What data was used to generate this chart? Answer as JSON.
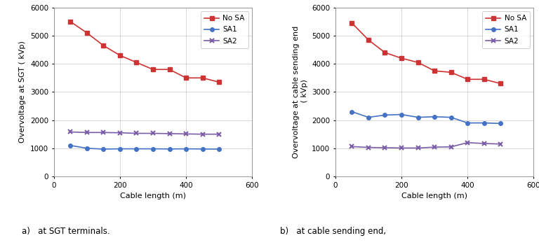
{
  "x": [
    50,
    100,
    150,
    200,
    250,
    300,
    350,
    400,
    450,
    500
  ],
  "left": {
    "no_sa": [
      5500,
      5100,
      4650,
      4300,
      4050,
      3800,
      3800,
      3500,
      3500,
      3350
    ],
    "sa1": [
      1100,
      1000,
      970,
      980,
      980,
      980,
      975,
      980,
      975,
      970
    ],
    "sa2": [
      1580,
      1560,
      1560,
      1550,
      1530,
      1530,
      1520,
      1510,
      1500,
      1500
    ]
  },
  "right": {
    "no_sa": [
      5450,
      4850,
      4400,
      4200,
      4050,
      3750,
      3700,
      3450,
      3450,
      3300
    ],
    "sa1": [
      2300,
      2100,
      2180,
      2200,
      2100,
      2120,
      2100,
      1900,
      1900,
      1880
    ],
    "sa2": [
      1060,
      1030,
      1020,
      1010,
      1010,
      1040,
      1050,
      1200,
      1170,
      1150
    ]
  },
  "colors": {
    "no_sa": "#cd3333",
    "sa1": "#4472c4",
    "sa2": "#7b5ea7"
  },
  "ylim": [
    0,
    6000
  ],
  "xlim": [
    0,
    600
  ],
  "yticks": [
    0,
    1000,
    2000,
    3000,
    4000,
    5000,
    6000
  ],
  "xticks": [
    0,
    200,
    400,
    600
  ],
  "xlabel": "Cable length (m)",
  "ylabel_left": "Overvoltage at SGT ( kVp)",
  "ylabel_right": "Overvoltage at cable sending end\n ( kVp)",
  "caption_left": "a)   at SGT terminals.",
  "caption_right": "b)   at cable sending end,",
  "legend_labels": [
    "No SA",
    "SA1",
    "SA2"
  ]
}
